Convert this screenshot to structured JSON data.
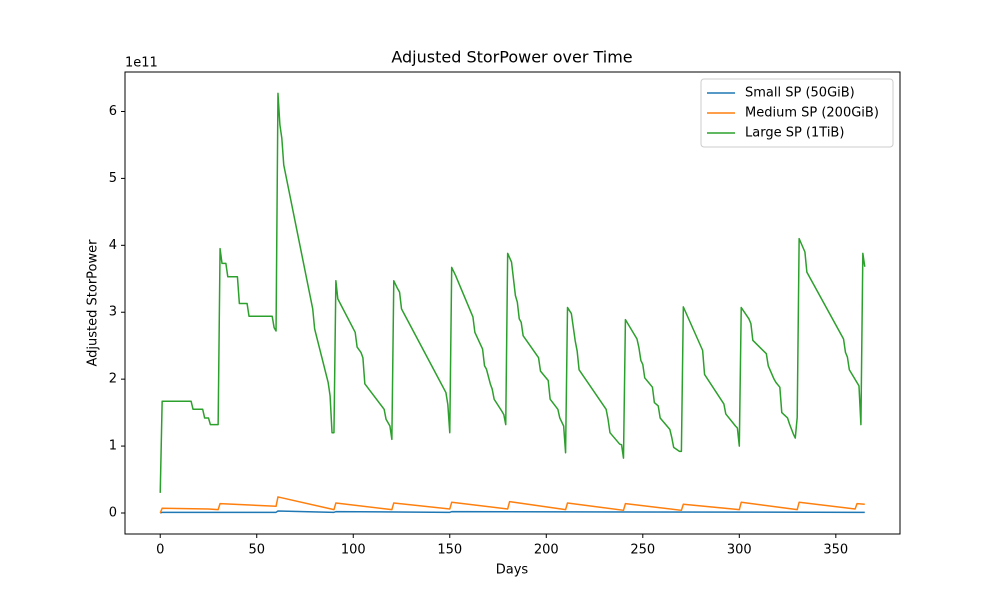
{
  "chart_data": {
    "type": "line",
    "title": "Adjusted StorPower over Time",
    "xlabel": "Days",
    "ylabel": "Adjusted StorPower",
    "y_offset_label": "1e11",
    "xlim": [
      -18.25,
      383.25
    ],
    "ylim": [
      -0.314,
      6.59
    ],
    "xticks": [
      0,
      50,
      100,
      150,
      200,
      250,
      300,
      350
    ],
    "yticks": [
      0,
      1,
      2,
      3,
      4,
      5,
      6
    ],
    "legend": "upper right",
    "series": [
      {
        "name": "Small SP (50GiB)",
        "color": "#1f77b4",
        "x": [
          0,
          1,
          60,
          61,
          90,
          91,
          150,
          151,
          365
        ],
        "values": [
          0.0,
          0.01,
          0.01,
          0.03,
          0.01,
          0.02,
          0.01,
          0.02,
          0.01
        ]
      },
      {
        "name": "Medium SP (200GiB)",
        "color": "#ff7f0e",
        "x": [
          0,
          1,
          25,
          30,
          31,
          60,
          61,
          90,
          91,
          120,
          121,
          150,
          151,
          180,
          181,
          210,
          211,
          240,
          241,
          270,
          271,
          300,
          301,
          330,
          331,
          360,
          361,
          365
        ],
        "values": [
          0.0,
          0.07,
          0.06,
          0.05,
          0.14,
          0.1,
          0.24,
          0.05,
          0.15,
          0.05,
          0.15,
          0.06,
          0.16,
          0.06,
          0.17,
          0.05,
          0.15,
          0.04,
          0.14,
          0.04,
          0.13,
          0.05,
          0.16,
          0.05,
          0.16,
          0.06,
          0.14,
          0.13
        ]
      },
      {
        "name": "Large SP (1TiB)",
        "color": "#2ca02c",
        "x": [
          0,
          1,
          16,
          17,
          22,
          23,
          25,
          26,
          30,
          31,
          32,
          34,
          35,
          40,
          41,
          45,
          46,
          58,
          59,
          60,
          61,
          62,
          63,
          64,
          79,
          80,
          87,
          88,
          89,
          90,
          91,
          92,
          101,
          102,
          104,
          105,
          106,
          116,
          117,
          119,
          120,
          121,
          123,
          124,
          125,
          148,
          149,
          150,
          151,
          153,
          162,
          163,
          167,
          168,
          169,
          171,
          172,
          173,
          177,
          178,
          179,
          180,
          182,
          184,
          185,
          186,
          187,
          188,
          196,
          197,
          201,
          202,
          206,
          207,
          209,
          210,
          211,
          213,
          215,
          216,
          217,
          231,
          232,
          233,
          238,
          239,
          240,
          241,
          247,
          248,
          249,
          250,
          251,
          255,
          256,
          258,
          259,
          264,
          265,
          266,
          269,
          270,
          271,
          281,
          282,
          292,
          293,
          298,
          299,
          300,
          301,
          305,
          306,
          307,
          314,
          315,
          318,
          319,
          321,
          322,
          325,
          326,
          328,
          329,
          330,
          331,
          334,
          335,
          354,
          355,
          356,
          357,
          362,
          363,
          364,
          365
        ],
        "values": [
          0.3,
          1.67,
          1.67,
          1.55,
          1.55,
          1.42,
          1.42,
          1.32,
          1.32,
          3.95,
          3.73,
          3.73,
          3.53,
          3.53,
          3.13,
          3.13,
          2.94,
          2.94,
          2.77,
          2.72,
          6.27,
          5.8,
          5.6,
          5.2,
          3.05,
          2.75,
          1.95,
          1.75,
          1.2,
          1.2,
          3.47,
          3.2,
          2.7,
          2.48,
          2.4,
          2.32,
          1.93,
          1.55,
          1.4,
          1.3,
          1.1,
          3.47,
          3.35,
          3.3,
          3.05,
          1.8,
          1.62,
          1.2,
          3.67,
          3.55,
          2.93,
          2.7,
          2.45,
          2.2,
          2.15,
          1.93,
          1.85,
          1.7,
          1.52,
          1.47,
          1.32,
          3.88,
          3.75,
          3.25,
          3.15,
          2.9,
          2.85,
          2.65,
          2.32,
          2.12,
          1.98,
          1.7,
          1.55,
          1.42,
          1.3,
          0.9,
          3.07,
          2.98,
          2.57,
          2.42,
          2.14,
          1.55,
          1.4,
          1.2,
          1.03,
          1.02,
          0.82,
          2.89,
          2.6,
          2.47,
          2.28,
          2.22,
          2.02,
          1.88,
          1.65,
          1.6,
          1.42,
          1.25,
          1.13,
          0.98,
          0.92,
          0.92,
          3.08,
          2.43,
          2.07,
          1.63,
          1.48,
          1.3,
          1.27,
          1.0,
          3.07,
          2.9,
          2.83,
          2.58,
          2.38,
          2.2,
          2.0,
          1.95,
          1.88,
          1.5,
          1.42,
          1.33,
          1.18,
          1.12,
          1.43,
          4.1,
          3.9,
          3.6,
          2.6,
          2.4,
          2.33,
          2.14,
          1.9,
          1.32,
          3.88,
          3.68
        ]
      }
    ]
  }
}
